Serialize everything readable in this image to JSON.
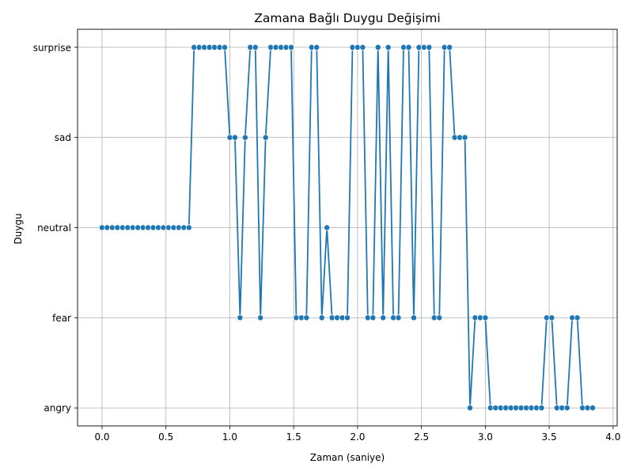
{
  "chart_data": {
    "type": "line",
    "title": "Zamana Bağlı Duygu Değişimi",
    "xlabel": "Zaman (saniye)",
    "ylabel": "Duygu",
    "xlim": [
      -0.192,
      4.032
    ],
    "x_ticks": [
      0.0,
      0.5,
      1.0,
      1.5,
      2.0,
      2.5,
      3.0,
      3.5,
      4.0
    ],
    "x_tick_labels": [
      "0.0",
      "0.5",
      "1.0",
      "1.5",
      "2.0",
      "2.5",
      "3.0",
      "3.5",
      "4.0"
    ],
    "categories": [
      "angry",
      "fear",
      "neutral",
      "sad",
      "surprise"
    ],
    "grid": true,
    "marker": "circle",
    "color": "#1f77b4",
    "series": [
      {
        "x": [
          0.0,
          0.04,
          0.08,
          0.12,
          0.16,
          0.2,
          0.24,
          0.28,
          0.32,
          0.36,
          0.4,
          0.44,
          0.48,
          0.52,
          0.56,
          0.6,
          0.64,
          0.68,
          0.72,
          0.76,
          0.8,
          0.84,
          0.88,
          0.92,
          0.96,
          1.0,
          1.04,
          1.08,
          1.12,
          1.16,
          1.2,
          1.24,
          1.28,
          1.32,
          1.36,
          1.4,
          1.44,
          1.48,
          1.52,
          1.56,
          1.6,
          1.64,
          1.68,
          1.72,
          1.76,
          1.8,
          1.84,
          1.88,
          1.92,
          1.96,
          2.0,
          2.04,
          2.08,
          2.12,
          2.16,
          2.2,
          2.24,
          2.28,
          2.32,
          2.36,
          2.4,
          2.44,
          2.48,
          2.52,
          2.56,
          2.6,
          2.64,
          2.68,
          2.72,
          2.76,
          2.8,
          2.84,
          2.88,
          2.92,
          2.96,
          3.0,
          3.04,
          3.08,
          3.12,
          3.16,
          3.2,
          3.24,
          3.28,
          3.32,
          3.36,
          3.4,
          3.44,
          3.48,
          3.52,
          3.56,
          3.6,
          3.64,
          3.68,
          3.72,
          3.76,
          3.8,
          3.84
        ],
        "y": [
          "neutral",
          "neutral",
          "neutral",
          "neutral",
          "neutral",
          "neutral",
          "neutral",
          "neutral",
          "neutral",
          "neutral",
          "neutral",
          "neutral",
          "neutral",
          "neutral",
          "neutral",
          "neutral",
          "neutral",
          "neutral",
          "surprise",
          "surprise",
          "surprise",
          "surprise",
          "surprise",
          "surprise",
          "surprise",
          "sad",
          "sad",
          "fear",
          "sad",
          "surprise",
          "surprise",
          "fear",
          "sad",
          "surprise",
          "surprise",
          "surprise",
          "surprise",
          "surprise",
          "fear",
          "fear",
          "fear",
          "surprise",
          "surprise",
          "fear",
          "neutral",
          "fear",
          "fear",
          "fear",
          "fear",
          "surprise",
          "surprise",
          "surprise",
          "fear",
          "fear",
          "surprise",
          "fear",
          "surprise",
          "fear",
          "fear",
          "surprise",
          "surprise",
          "fear",
          "surprise",
          "surprise",
          "surprise",
          "fear",
          "fear",
          "surprise",
          "surprise",
          "sad",
          "sad",
          "sad",
          "angry",
          "fear",
          "fear",
          "fear",
          "angry",
          "angry",
          "angry",
          "angry",
          "angry",
          "angry",
          "angry",
          "angry",
          "angry",
          "angry",
          "angry",
          "fear",
          "fear",
          "angry",
          "angry",
          "angry",
          "fear",
          "fear",
          "angry",
          "angry",
          "angry"
        ]
      }
    ]
  }
}
